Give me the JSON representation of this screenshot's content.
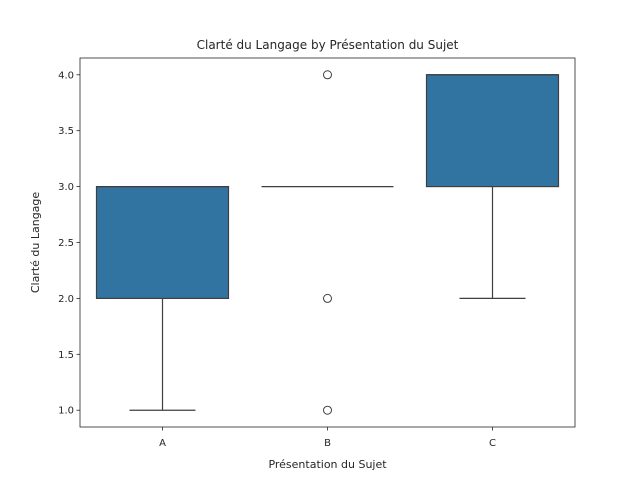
{
  "chart_data": {
    "type": "box",
    "title": "Clarté du Langage by Présentation du Sujet",
    "xlabel": "Présentation du Sujet",
    "ylabel": "Clarté du Langage",
    "categories": [
      "A",
      "B",
      "C"
    ],
    "ylim": [
      0.85,
      4.15
    ],
    "yticks": [
      1.0,
      1.5,
      2.0,
      2.5,
      3.0,
      3.5,
      4.0
    ],
    "ytick_labels": [
      "1.0",
      "1.5",
      "2.0",
      "2.5",
      "3.0",
      "3.5",
      "4.0"
    ],
    "grid": false,
    "legend": "none",
    "box_color": "#3274a1",
    "line_color": "#3f3f3f",
    "boxes": [
      {
        "category": "A",
        "whisker_low": 1.0,
        "q1": 2.0,
        "median": 3.0,
        "q3": 3.0,
        "whisker_high": 3.0,
        "outliers": []
      },
      {
        "category": "B",
        "whisker_low": 3.0,
        "q1": 3.0,
        "median": 3.0,
        "q3": 3.0,
        "whisker_high": 3.0,
        "outliers": [
          1.0,
          2.0,
          4.0
        ]
      },
      {
        "category": "C",
        "whisker_low": 2.0,
        "q1": 3.0,
        "median": 4.0,
        "q3": 4.0,
        "whisker_high": 4.0,
        "outliers": []
      }
    ]
  }
}
